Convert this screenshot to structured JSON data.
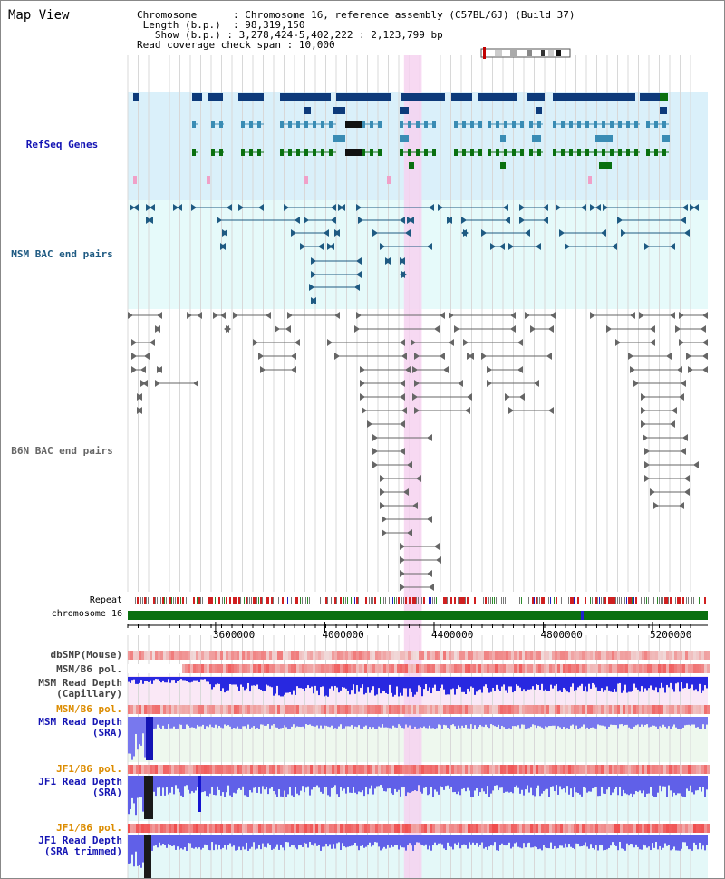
{
  "title": "Map View",
  "header": {
    "chromosome_label": "Chromosome",
    "chromosome_value": "Chromosome 16, reference assembly (C57BL/6J) (Build 37)",
    "length_label": "Length (b.p.)",
    "length_value": "98,319,150",
    "show_label": "Show (b.p.)",
    "show_value": "3,278,424-5,402,222 : 2,123,799 bp",
    "span_label": "Read coverage check span",
    "span_value": "10,000"
  },
  "tracks": {
    "refseq": "RefSeq Genes",
    "msm_bac": "MSM BAC end pairs",
    "b6n_bac": "B6N BAC end pairs",
    "repeat": "Repeat",
    "chromosome": "chromosome 16",
    "dbsnp": "dbSNP(Mouse)",
    "msm_b6_pol_1": "MSM/B6 pol.",
    "msm_depth_cap_1": "MSM Read Depth",
    "msm_depth_cap_2": "(Capillary)",
    "msm_b6_pol_2": "MSM/B6 pol.",
    "msm_depth_sra_1": "MSM Read Depth",
    "msm_depth_sra_2": "(SRA)",
    "jf1_b6_pol_1": "JF1/B6 pol.",
    "jf1_depth_sra_1": "JF1 Read Depth",
    "jf1_depth_sra_2": "(SRA)",
    "jf1_b6_pol_2": "JF1/B6 pol.",
    "jf1_depth_trim_1": "JF1 Read Depth",
    "jf1_depth_trim_2": "(SRA trimmed)"
  },
  "axis": {
    "ticks": [
      "3600000",
      "4000000",
      "4400000",
      "4800000",
      "5200000"
    ],
    "range_start": 3278424,
    "range_end": 5402222
  },
  "highlight": {
    "start": 4290000,
    "end": 4355000
  },
  "colors": {
    "refseq_bg": "#daf0fa",
    "bac_bg": "#e6fafa",
    "highlight": "#f6d2f0",
    "gene_dark": "#0d3a7a",
    "gene_mid": "#3a8cb4",
    "gene_green": "#0a7010",
    "msm_bac": "#1e5a82",
    "b6n_bac": "#666666",
    "chrom_bar": "#0a7010",
    "depth_blue": "#3030e0",
    "label_blue": "#1414b4",
    "label_teal": "#1e5a82",
    "label_orange": "#dc8c00"
  }
}
